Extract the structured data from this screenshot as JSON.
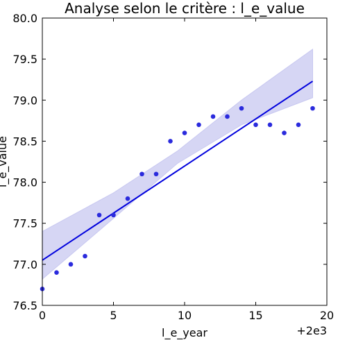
{
  "chart_data": {
    "type": "scatter",
    "title": "Analyse selon le critère : l_e_value",
    "xlabel": "l_e_year",
    "ylabel": "l_e_value",
    "x_offset_label": "+2e3",
    "xlim": [
      0,
      20
    ],
    "ylim": [
      76.5,
      80.0
    ],
    "xticks": [
      0,
      5,
      10,
      15,
      20
    ],
    "yticks": [
      76.5,
      77.0,
      77.5,
      78.0,
      78.5,
      79.0,
      79.5,
      80.0
    ],
    "xtick_labels": [
      "0",
      "5",
      "10",
      "15",
      "20"
    ],
    "ytick_labels": [
      "76.5",
      "77.0",
      "77.5",
      "78.0",
      "78.5",
      "79.0",
      "79.5",
      "80.0"
    ],
    "grid": false,
    "point_color": "#2b2bdd",
    "line_color": "#0000dd",
    "band_color": "#c8c8f0",
    "series": [
      {
        "x": [
          0,
          1,
          2,
          3,
          4,
          5,
          6,
          7,
          8,
          9,
          10,
          11,
          12,
          13,
          14,
          15,
          16,
          17,
          18,
          19
        ],
        "y": [
          76.7,
          76.9,
          77.0,
          77.1,
          77.6,
          77.6,
          77.8,
          78.1,
          78.1,
          78.5,
          78.6,
          78.7,
          78.8,
          78.8,
          78.9,
          78.7,
          78.7,
          78.6,
          78.7,
          78.9
        ]
      }
    ],
    "regression": {
      "x": [
        0,
        19
      ],
      "y": [
        77.05,
        79.23
      ],
      "ci_band": {
        "x": [
          0,
          5,
          9.5,
          14,
          19
        ],
        "lower": [
          76.82,
          77.56,
          78.23,
          78.7,
          79.03
        ],
        "upper": [
          77.4,
          77.87,
          78.38,
          79.0,
          79.62
        ]
      }
    }
  }
}
